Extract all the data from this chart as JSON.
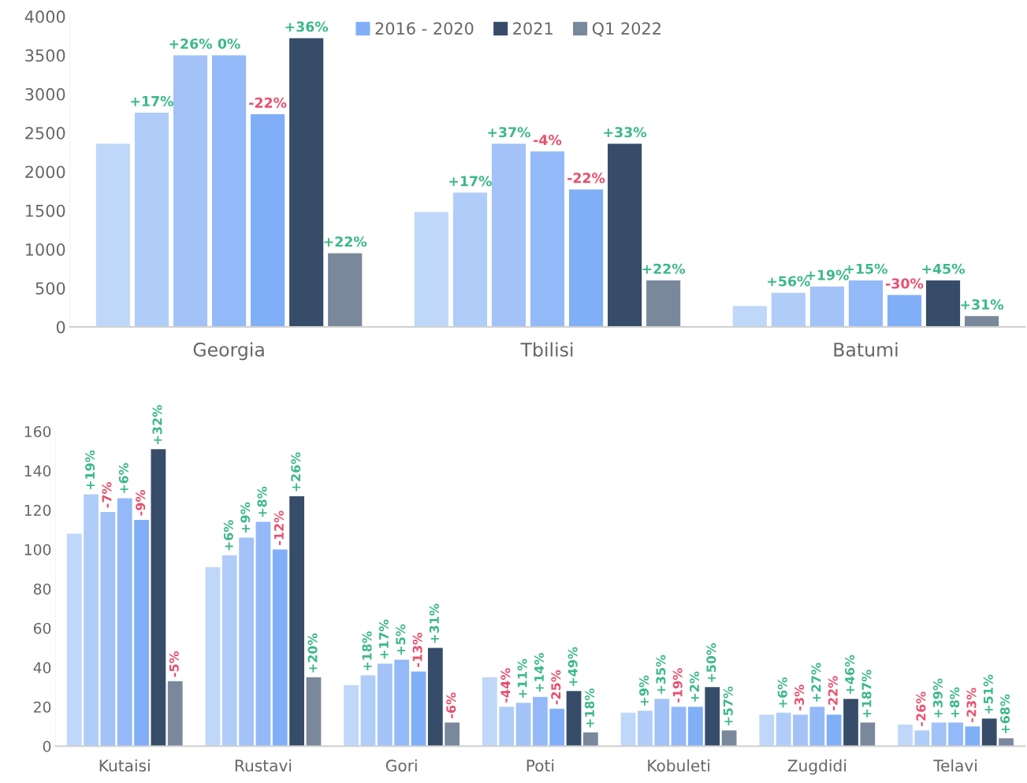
{
  "chart_data": [
    {
      "type": "bar",
      "categories": [
        "Georgia",
        "Tbilisi",
        "Batumi"
      ],
      "ylim": [
        0,
        4000
      ],
      "yticks": [
        0,
        500,
        1000,
        1500,
        2000,
        2500,
        3000,
        3500,
        4000
      ],
      "grid": false,
      "legend": "top",
      "series": [
        {
          "color": "#bfd7f8",
          "values": [
            2360,
            1480,
            270
          ]
        },
        {
          "color": "#afcdf8",
          "values": [
            2760,
            1730,
            440
          ]
        },
        {
          "color": "#a2c2f8",
          "values": [
            3500,
            2360,
            520
          ]
        },
        {
          "color": "#93b9f8",
          "values": [
            3500,
            2260,
            600
          ]
        },
        {
          "name": "2016 - 2020",
          "color": "#80aff8",
          "values": [
            2740,
            1770,
            410
          ]
        },
        {
          "name": "2021",
          "color": "#364c69",
          "values": [
            3720,
            2360,
            600
          ]
        },
        {
          "name": "Q1 2022",
          "color": "#7a889c",
          "values": [
            950,
            600,
            140
          ]
        }
      ],
      "annotations": [
        "+17%",
        "+26%",
        "0%",
        "-22%",
        "+36%",
        "+22%",
        "+17%",
        "+37%",
        "-4%",
        "-22%",
        "+33%",
        "+22%",
        "+56%",
        "+19%",
        "+15%",
        "-30%",
        "+45%",
        "+31%"
      ]
    },
    {
      "type": "bar",
      "categories": [
        "Kutaisi",
        "Rustavi",
        "Gori",
        "Poti",
        "Kobuleti",
        "Zugdidi",
        "Telavi"
      ],
      "ylim": [
        0,
        160
      ],
      "yticks": [
        0,
        20,
        40,
        60,
        80,
        100,
        120,
        140,
        160
      ],
      "grid": false,
      "series": [
        {
          "color": "#bfd7f8",
          "values": [
            108,
            91,
            31,
            35,
            17,
            16,
            11
          ]
        },
        {
          "color": "#afcdf8",
          "values": [
            128,
            97,
            36,
            20,
            18,
            17,
            8
          ]
        },
        {
          "color": "#a2c2f8",
          "values": [
            119,
            106,
            42,
            22,
            24,
            16,
            12
          ]
        },
        {
          "color": "#93b9f8",
          "values": [
            126,
            114,
            44,
            25,
            20,
            20,
            12
          ]
        },
        {
          "color": "#80aff8",
          "values": [
            115,
            100,
            38,
            19,
            20,
            16,
            10
          ]
        },
        {
          "color": "#364c69",
          "values": [
            151,
            127,
            50,
            28,
            30,
            24,
            14
          ]
        },
        {
          "color": "#7a889c",
          "values": [
            33,
            35,
            12,
            7,
            8,
            12,
            4
          ]
        }
      ],
      "annotations": [
        "+19%",
        "-7%",
        "+6%",
        "-9%",
        "+32%",
        "-5%",
        "+6%",
        "+9%",
        "+8%",
        "-12%",
        "+26%",
        "+20%",
        "+18%",
        "+17%",
        "+5%",
        "-13%",
        "+31%",
        "-6%",
        "-44%",
        "+11%",
        "+14%",
        "-25%",
        "+49%",
        "+18%",
        "+9%",
        "+35%",
        "-19%",
        "+2%",
        "+50%",
        "+57%",
        "+6%",
        "-3%",
        "+27%",
        "-22%",
        "+46%",
        "+187%",
        "-26%",
        "+39%",
        "+8%",
        "-23%",
        "+51%",
        "+68%"
      ]
    }
  ]
}
